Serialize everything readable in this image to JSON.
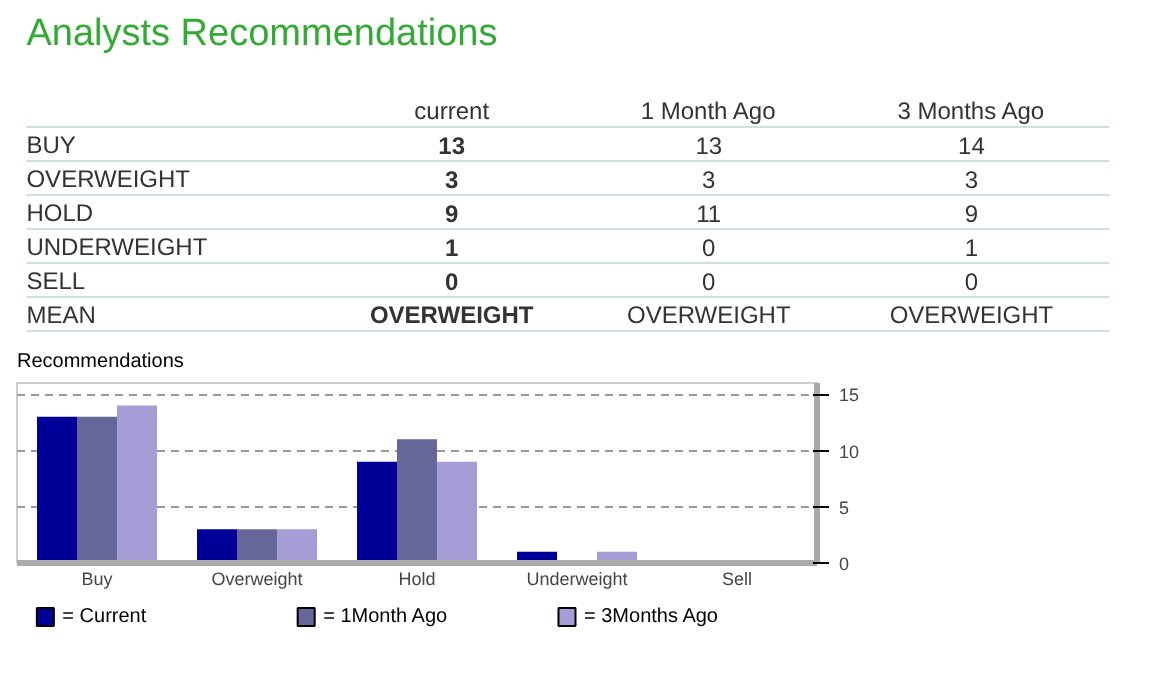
{
  "chart_data": [
    {
      "type": "other",
      "title": "Analysts Recommendations",
      "categories": [
        "BUY",
        "OVERWEIGHT",
        "HOLD",
        "UNDERWEIGHT",
        "SELL"
      ],
      "series": [
        {
          "name": "current",
          "values": [
            13,
            3,
            9,
            1,
            0
          ]
        },
        {
          "name": "1 Month Ago",
          "values": [
            13,
            3,
            11,
            0,
            0
          ]
        },
        {
          "name": "3 Months Ago",
          "values": [
            14,
            3,
            9,
            1,
            0
          ]
        }
      ],
      "data_labels": true,
      "annotations": [
        "MEAN",
        "OVERWEIGHT",
        "OVERWEIGHT",
        "OVERWEIGHT"
      ]
    },
    {
      "type": "bar",
      "title": "Recommendations",
      "categories": [
        "Buy",
        "Overweight",
        "Hold",
        "Underweight",
        "Sell"
      ],
      "series": [
        {
          "name": "= Current",
          "color": "#000099",
          "values": [
            13,
            3,
            9,
            1,
            0
          ]
        },
        {
          "name": "= 1Month Ago",
          "color": "#666699",
          "values": [
            13,
            3,
            11,
            0,
            0
          ]
        },
        {
          "name": "= 3Months Ago",
          "color": "#a59dd6",
          "values": [
            14,
            3,
            9,
            1,
            0
          ]
        }
      ],
      "ylim": [
        0,
        16
      ],
      "yticks": [
        0,
        5,
        10,
        15
      ],
      "grid": "y",
      "legend": "bottom"
    }
  ]
}
